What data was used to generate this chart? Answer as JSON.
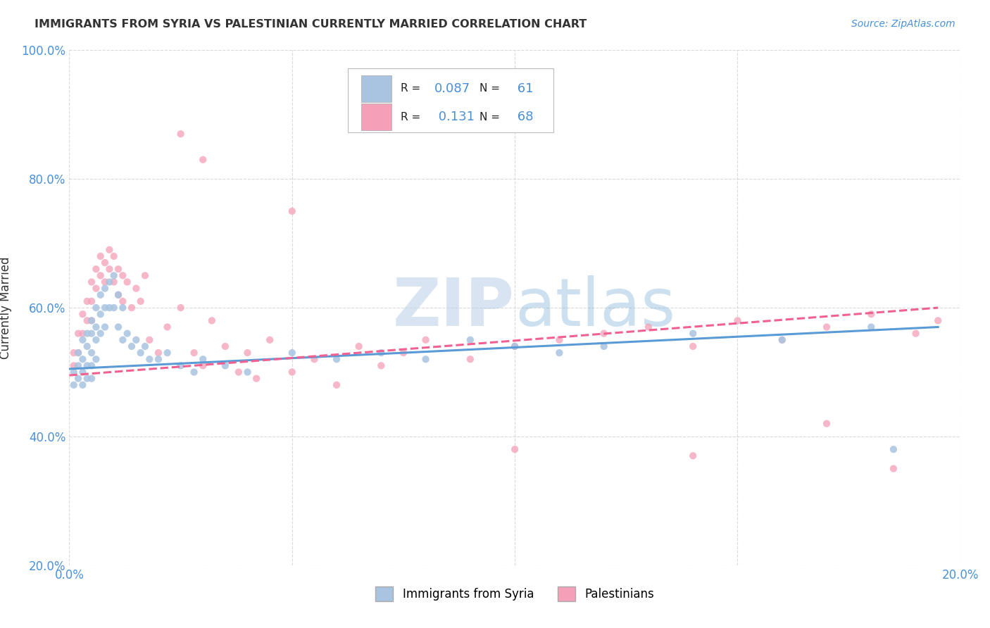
{
  "title": "IMMIGRANTS FROM SYRIA VS PALESTINIAN CURRENTLY MARRIED CORRELATION CHART",
  "source": "Source: ZipAtlas.com",
  "ylabel": "Currently Married",
  "xlim": [
    0.0,
    0.2
  ],
  "ylim": [
    0.2,
    1.0
  ],
  "xticks": [
    0.0,
    0.05,
    0.1,
    0.15,
    0.2
  ],
  "xtick_labels": [
    "0.0%",
    "",
    "",
    "",
    "20.0%"
  ],
  "yticks": [
    0.2,
    0.4,
    0.6,
    0.8,
    1.0
  ],
  "ytick_labels": [
    "20.0%",
    "40.0%",
    "60.0%",
    "80.0%",
    "100.0%"
  ],
  "series1_label": "Immigrants from Syria",
  "series1_color": "#a8c4e0",
  "series1_R": 0.087,
  "series1_N": 61,
  "series2_label": "Palestinians",
  "series2_color": "#f4a0b8",
  "series2_R": 0.131,
  "series2_N": 68,
  "background_color": "#ffffff",
  "grid_color": "#d0d0d0",
  "watermark_zip": "ZIP",
  "watermark_atlas": "atlas",
  "title_color": "#333333",
  "axis_color": "#333333",
  "series1_x": [
    0.001,
    0.001,
    0.002,
    0.002,
    0.002,
    0.003,
    0.003,
    0.003,
    0.003,
    0.004,
    0.004,
    0.004,
    0.004,
    0.005,
    0.005,
    0.005,
    0.005,
    0.005,
    0.006,
    0.006,
    0.006,
    0.006,
    0.007,
    0.007,
    0.007,
    0.008,
    0.008,
    0.008,
    0.009,
    0.009,
    0.01,
    0.01,
    0.011,
    0.011,
    0.012,
    0.012,
    0.013,
    0.014,
    0.015,
    0.016,
    0.017,
    0.018,
    0.02,
    0.022,
    0.025,
    0.028,
    0.03,
    0.035,
    0.04,
    0.05,
    0.06,
    0.07,
    0.08,
    0.09,
    0.1,
    0.11,
    0.12,
    0.14,
    0.16,
    0.18,
    0.185
  ],
  "series1_y": [
    0.5,
    0.48,
    0.53,
    0.51,
    0.49,
    0.55,
    0.52,
    0.5,
    0.48,
    0.56,
    0.54,
    0.51,
    0.49,
    0.58,
    0.56,
    0.53,
    0.51,
    0.49,
    0.6,
    0.57,
    0.55,
    0.52,
    0.62,
    0.59,
    0.56,
    0.63,
    0.6,
    0.57,
    0.64,
    0.6,
    0.65,
    0.6,
    0.62,
    0.57,
    0.6,
    0.55,
    0.56,
    0.54,
    0.55,
    0.53,
    0.54,
    0.52,
    0.52,
    0.53,
    0.51,
    0.5,
    0.52,
    0.51,
    0.5,
    0.53,
    0.52,
    0.53,
    0.52,
    0.55,
    0.54,
    0.53,
    0.54,
    0.56,
    0.55,
    0.57,
    0.38
  ],
  "series2_x": [
    0.001,
    0.001,
    0.002,
    0.002,
    0.003,
    0.003,
    0.004,
    0.004,
    0.005,
    0.005,
    0.005,
    0.006,
    0.006,
    0.007,
    0.007,
    0.008,
    0.008,
    0.009,
    0.009,
    0.01,
    0.01,
    0.011,
    0.011,
    0.012,
    0.012,
    0.013,
    0.014,
    0.015,
    0.016,
    0.017,
    0.018,
    0.02,
    0.022,
    0.025,
    0.028,
    0.03,
    0.032,
    0.035,
    0.038,
    0.04,
    0.042,
    0.045,
    0.05,
    0.055,
    0.06,
    0.065,
    0.07,
    0.075,
    0.08,
    0.09,
    0.1,
    0.11,
    0.12,
    0.13,
    0.14,
    0.15,
    0.16,
    0.17,
    0.18,
    0.19,
    0.195,
    0.025,
    0.03,
    0.05,
    0.1,
    0.14,
    0.17,
    0.185
  ],
  "series2_y": [
    0.53,
    0.51,
    0.56,
    0.53,
    0.59,
    0.56,
    0.61,
    0.58,
    0.64,
    0.61,
    0.58,
    0.66,
    0.63,
    0.68,
    0.65,
    0.67,
    0.64,
    0.69,
    0.66,
    0.68,
    0.64,
    0.66,
    0.62,
    0.65,
    0.61,
    0.64,
    0.6,
    0.63,
    0.61,
    0.65,
    0.55,
    0.53,
    0.57,
    0.6,
    0.53,
    0.51,
    0.58,
    0.54,
    0.5,
    0.53,
    0.49,
    0.55,
    0.5,
    0.52,
    0.48,
    0.54,
    0.51,
    0.53,
    0.55,
    0.52,
    0.54,
    0.55,
    0.56,
    0.57,
    0.54,
    0.58,
    0.55,
    0.57,
    0.59,
    0.56,
    0.58,
    0.87,
    0.83,
    0.75,
    0.38,
    0.37,
    0.42,
    0.35
  ]
}
